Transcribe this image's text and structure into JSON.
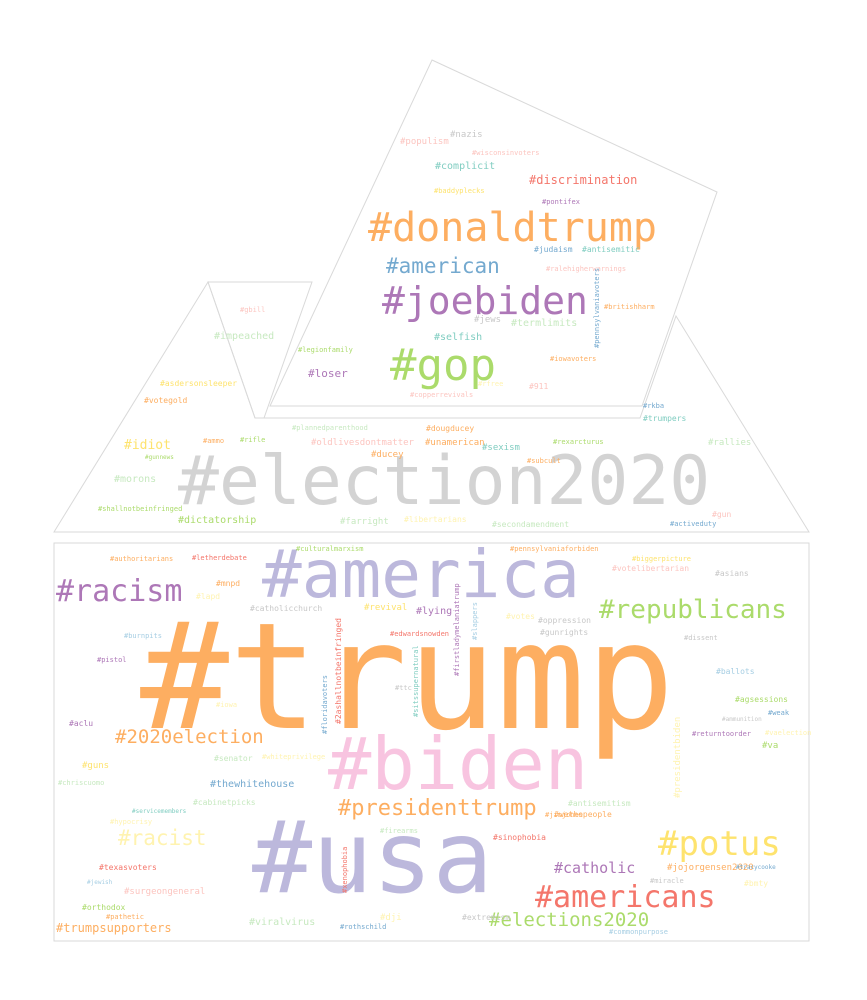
{
  "palette": {
    "orange": "#fdae61",
    "gray": "#d3d3d3",
    "lavender": "#bcb8dc",
    "purple": "#ad77b7",
    "pink": "#f8c4e0",
    "green": "#abdb6b",
    "red": "#f4766b",
    "blue": "#74a9cf",
    "teal": "#80cdc1",
    "yellow": "#fee36e",
    "lightgreen": "#c7e9c0",
    "lightpink": "#fcc5c0",
    "lightblue": "#a6cee3",
    "lightgray": "#c8c8c8",
    "lightyellow": "#fff3b0"
  },
  "words": [
    {
      "text": "#trump",
      "color": "orange"
    },
    {
      "text": "#election2020",
      "color": "gray"
    },
    {
      "text": "#usa",
      "color": "lavender"
    },
    {
      "text": "#america",
      "color": "lavender"
    },
    {
      "text": "#biden",
      "color": "pink"
    },
    {
      "text": "#donaldtrump",
      "color": "orange"
    },
    {
      "text": "#joebiden",
      "color": "purple"
    },
    {
      "text": "#gop",
      "color": "green"
    },
    {
      "text": "#racism",
      "color": "purple"
    },
    {
      "text": "#republicans",
      "color": "green"
    },
    {
      "text": "#potus",
      "color": "yellow"
    },
    {
      "text": "#americans",
      "color": "red"
    },
    {
      "text": "#presidenttrump",
      "color": "orange"
    },
    {
      "text": "#american",
      "color": "blue"
    },
    {
      "text": "#2020election",
      "color": "orange"
    },
    {
      "text": "#elections2020",
      "color": "green"
    },
    {
      "text": "#racist",
      "color": "lightyellow"
    },
    {
      "text": "#catholic",
      "color": "purple"
    },
    {
      "text": "#trumpsupporters",
      "color": "orange"
    },
    {
      "text": "#discrimination",
      "color": "red"
    },
    {
      "text": "#complicit",
      "color": "teal"
    },
    {
      "text": "#nazis",
      "color": "lightgray"
    },
    {
      "text": "#populism",
      "color": "lightpink"
    },
    {
      "text": "#wisconsinvoters",
      "color": "lightpink"
    },
    {
      "text": "#baddyplecks",
      "color": "yellow"
    },
    {
      "text": "#pontifex",
      "color": "purple"
    },
    {
      "text": "#judaism",
      "color": "blue"
    },
    {
      "text": "#antisemitic",
      "color": "teal"
    },
    {
      "text": "#ralehigherwarnings",
      "color": "lightpink"
    },
    {
      "text": "#pennsylvaniavoters",
      "color": "blue"
    },
    {
      "text": "#britishharm",
      "color": "orange"
    },
    {
      "text": "#jews",
      "color": "lightgray"
    },
    {
      "text": "#termlimits",
      "color": "lightgreen"
    },
    {
      "text": "#selfish",
      "color": "teal"
    },
    {
      "text": "#iowavoters",
      "color": "orange"
    },
    {
      "text": "#loser",
      "color": "purple"
    },
    {
      "text": "#legionfamily",
      "color": "green"
    },
    {
      "text": "#impeached",
      "color": "lightgreen"
    },
    {
      "text": "#gbill",
      "color": "lightpink"
    },
    {
      "text": "#asdersonsleeper",
      "color": "yellow"
    },
    {
      "text": "#votegold",
      "color": "orange"
    },
    {
      "text": "#911",
      "color": "lightpink"
    },
    {
      "text": "#copperrevivals",
      "color": "lightpink"
    },
    {
      "text": "#rfree",
      "color": "lightyellow"
    },
    {
      "text": "#rkba",
      "color": "blue"
    },
    {
      "text": "#trumpers",
      "color": "teal"
    },
    {
      "text": "#dougducey",
      "color": "orange"
    },
    {
      "text": "#unamerican",
      "color": "orange"
    },
    {
      "text": "#oldlivesdontmatter",
      "color": "lightpink"
    },
    {
      "text": "#plannedparenthood",
      "color": "lightgreen"
    },
    {
      "text": "#idiot",
      "color": "yellow"
    },
    {
      "text": "#ammo",
      "color": "orange"
    },
    {
      "text": "#rifle",
      "color": "green"
    },
    {
      "text": "#gunnews",
      "color": "green"
    },
    {
      "text": "#ducey",
      "color": "orange"
    },
    {
      "text": "#sexism",
      "color": "teal"
    },
    {
      "text": "#rexarcturus",
      "color": "green"
    },
    {
      "text": "#rallies",
      "color": "lightgreen"
    },
    {
      "text": "#morons",
      "color": "lightgreen"
    },
    {
      "text": "#subcult",
      "color": "orange"
    },
    {
      "text": "#shallnotbeinfringed",
      "color": "green"
    },
    {
      "text": "#dictatorship",
      "color": "green"
    },
    {
      "text": "#farright",
      "color": "lightgreen"
    },
    {
      "text": "#secondamendment",
      "color": "lightgreen"
    },
    {
      "text": "#activeduty",
      "color": "blue"
    },
    {
      "text": "#gun",
      "color": "lightpink"
    },
    {
      "text": "#libertarians",
      "color": "lightyellow"
    },
    {
      "text": "#authoritarians",
      "color": "orange"
    },
    {
      "text": "#letherdebate",
      "color": "red"
    },
    {
      "text": "#culturalmarxism",
      "color": "green"
    },
    {
      "text": "#pennsylvaniaforbiden",
      "color": "orange"
    },
    {
      "text": "#biggerpicture",
      "color": "yellow"
    },
    {
      "text": "#votelibertarian",
      "color": "lightpink"
    },
    {
      "text": "#asians",
      "color": "lightgray"
    },
    {
      "text": "#mnpd",
      "color": "orange"
    },
    {
      "text": "#lapd",
      "color": "lightyellow"
    },
    {
      "text": "#catholicchurch",
      "color": "lightgray"
    },
    {
      "text": "#revival",
      "color": "yellow"
    },
    {
      "text": "#lying",
      "color": "purple"
    },
    {
      "text": "#firstladymelaniatrump",
      "color": "purple"
    },
    {
      "text": "#oppression",
      "color": "lightgray"
    },
    {
      "text": "#gunrights",
      "color": "lightgray"
    },
    {
      "text": "#votes",
      "color": "lightyellow"
    },
    {
      "text": "#burnpits",
      "color": "lightblue"
    },
    {
      "text": "#edwardsnowden",
      "color": "red"
    },
    {
      "text": "#2ashallnotbeinfringed",
      "color": "red"
    },
    {
      "text": "#dissent",
      "color": "lightgray"
    },
    {
      "text": "#pistol",
      "color": "purple"
    },
    {
      "text": "#ballots",
      "color": "lightblue"
    },
    {
      "text": "#floridavoters",
      "color": "blue"
    },
    {
      "text": "#sitssupernatural",
      "color": "teal"
    },
    {
      "text": "#slappers",
      "color": "lightblue"
    },
    {
      "text": "#ttc",
      "color": "lightgray"
    },
    {
      "text": "#agsessions",
      "color": "green"
    },
    {
      "text": "#weak",
      "color": "blue"
    },
    {
      "text": "#aclu",
      "color": "purple"
    },
    {
      "text": "#iowa",
      "color": "lightyellow"
    },
    {
      "text": "#ammunition",
      "color": "lightgray"
    },
    {
      "text": "#returntoorder",
      "color": "purple"
    },
    {
      "text": "#vaelection",
      "color": "lightyellow"
    },
    {
      "text": "#va",
      "color": "green"
    },
    {
      "text": "#guns",
      "color": "yellow"
    },
    {
      "text": "#senator",
      "color": "lightgreen"
    },
    {
      "text": "#whiteprivilege",
      "color": "lightyellow"
    },
    {
      "text": "#chriscuomo",
      "color": "lightgreen"
    },
    {
      "text": "#presidentbiden",
      "color": "lightyellow"
    },
    {
      "text": "#antisemitism",
      "color": "lightgreen"
    },
    {
      "text": "#thewhitehouse",
      "color": "blue"
    },
    {
      "text": "#cabinetpicks",
      "color": "lightgreen"
    },
    {
      "text": "#servicemembers",
      "color": "teal"
    },
    {
      "text": "#hypocrisy",
      "color": "lightyellow"
    },
    {
      "text": "#jimjones",
      "color": "orange"
    },
    {
      "text": "#wethepeople",
      "color": "orange"
    },
    {
      "text": "#firearms",
      "color": "lightgreen"
    },
    {
      "text": "#sinophobia",
      "color": "red"
    },
    {
      "text": "#texasvoters",
      "color": "red"
    },
    {
      "text": "#xenophobia",
      "color": "red"
    },
    {
      "text": "#jojorgensen2020",
      "color": "orange"
    },
    {
      "text": "#tracycooke",
      "color": "blue"
    },
    {
      "text": "#miracle",
      "color": "lightgray"
    },
    {
      "text": "#bmty",
      "color": "lightyellow"
    },
    {
      "text": "#jewish",
      "color": "lightblue"
    },
    {
      "text": "#surgeongeneral",
      "color": "lightpink"
    },
    {
      "text": "#orthodox",
      "color": "green"
    },
    {
      "text": "#pathetic",
      "color": "orange"
    },
    {
      "text": "#viralvirus",
      "color": "lightgreen"
    },
    {
      "text": "#rothschild",
      "color": "blue"
    },
    {
      "text": "#dji",
      "color": "lightyellow"
    },
    {
      "text": "#extremism",
      "color": "lightgray"
    },
    {
      "text": "#commonpurpose",
      "color": "lightblue"
    }
  ]
}
